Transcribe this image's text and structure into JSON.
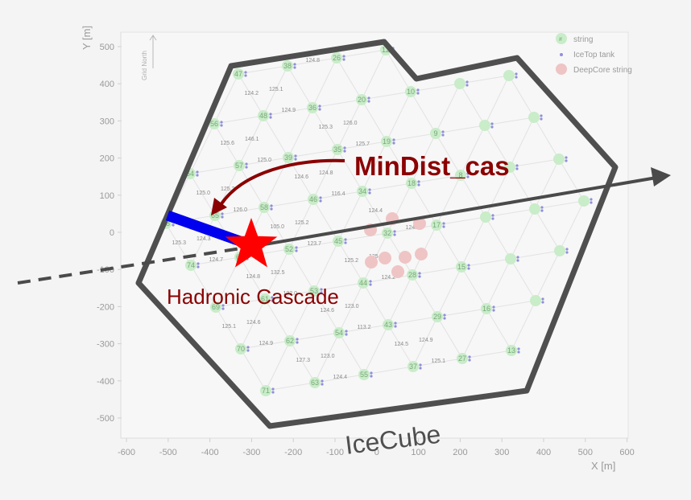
{
  "axes": {
    "y_label": "Y [m]",
    "x_label": "X [m]",
    "y_ticks": [
      "500",
      "400",
      "300",
      "200",
      "100",
      "0",
      "-100",
      "-200",
      "-300",
      "-400",
      "-500"
    ],
    "x_ticks": [
      "-600",
      "-500",
      "-400",
      "-300",
      "-200",
      "-100",
      "0",
      "100",
      "200",
      "300",
      "400",
      "500",
      "600"
    ],
    "grid_north": "Grid North"
  },
  "legend": {
    "string": "string",
    "icetop": "IceTop tank",
    "deepcore": "DeepCore string",
    "symbol": "#"
  },
  "annotations": {
    "mindist": "MinDist_cas",
    "cascade": "Hadronic Cascade",
    "detector": "IceCube"
  },
  "string_ids": [
    "78",
    "74",
    "69",
    "70",
    "71",
    "64",
    "65",
    "60",
    "61",
    "62",
    "63",
    "56",
    "57",
    "58",
    "52",
    "53",
    "54",
    "55",
    "47",
    "48",
    "39",
    "46",
    "45",
    "44",
    "43",
    "37",
    "38",
    "36",
    "35",
    "34",
    "32",
    "28",
    "29",
    "27",
    "26",
    "20",
    "19",
    "18",
    "17",
    "15",
    "16",
    "13",
    "12",
    "10",
    "9",
    "8"
  ],
  "distances": [
    "125.3",
    "124.7",
    "124.3",
    "125.1",
    "124.9",
    "124.6",
    "125.0",
    "126.0",
    "125.2",
    "124.8",
    "122.0",
    "132.5",
    "127.3",
    "124.4",
    "123.0",
    "125.6",
    "125.0",
    "146.1",
    "105.0",
    "123.7",
    "125.2",
    "124.6",
    "113.2",
    "123.0",
    "124.2",
    "124.9",
    "125.1",
    "124.6",
    "116.4",
    "124.8",
    "125.2",
    "124.2",
    "125.9",
    "124.5",
    "125.1",
    "124.9",
    "124.8",
    "125.3",
    "125.7",
    "126.0",
    "124.4",
    "124.6"
  ],
  "colors": {
    "outline": "#4f4f4f",
    "mindist_text": "#8b0000",
    "track": "#4a4a4a",
    "segment": "#0000ee",
    "star": "#ff0000",
    "string_fill": "#c9ecc9",
    "deepcore_fill": "#efc4c4",
    "tank": "#8f8fd8"
  }
}
